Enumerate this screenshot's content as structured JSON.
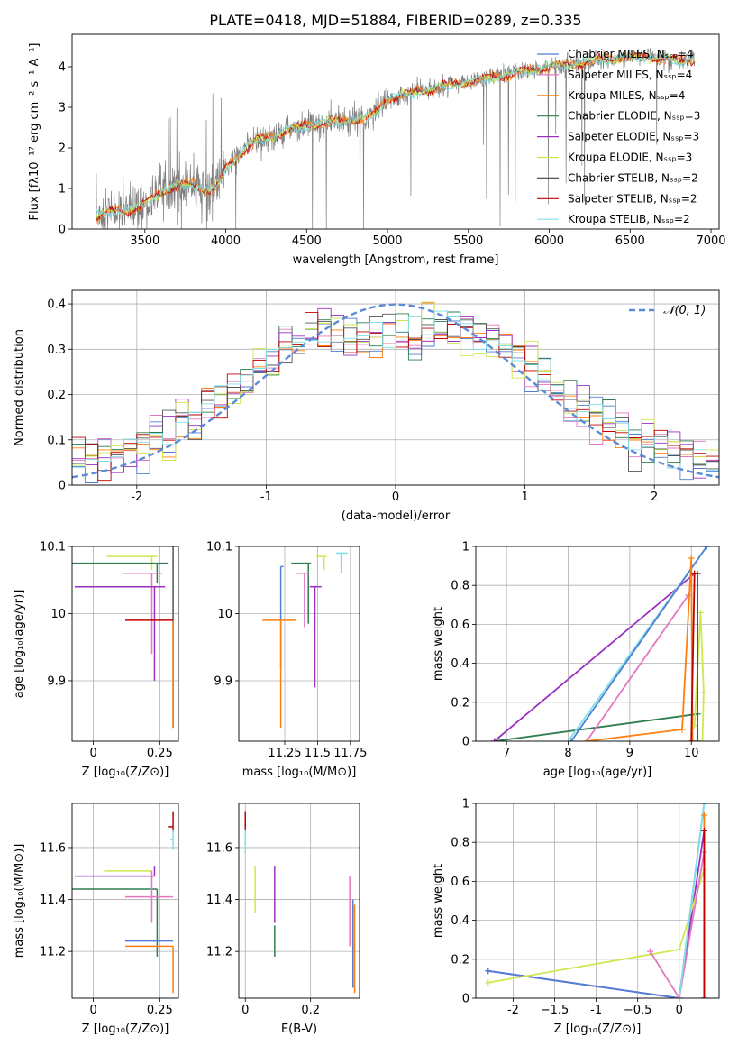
{
  "figure_title": "PLATE=0418, MJD=51884, FIBERID=0289, z=0.335",
  "colors": {
    "chabrier_miles": "#4f7fd6",
    "salpeter_miles": "#e377c2",
    "kroupa_miles": "#ff7f0e",
    "chabrier_elodie": "#2e7d4f",
    "salpeter_elodie": "#9b30c0",
    "kroupa_elodie": "#cde84f",
    "chabrier_stelib": "#555555",
    "salpeter_stelib": "#c00000",
    "kroupa_stelib": "#7fdfe6",
    "gauss": "#5b8ad8",
    "grid": "#b0b0b0"
  },
  "chart_data": [
    {
      "id": "spectrum",
      "type": "line",
      "xlabel": "wavelength [Angstrom, rest frame]",
      "ylabel": "Flux [fλ10⁻¹⁷ erg cm⁻² s⁻¹ A⁻¹]",
      "xlim": [
        3050,
        7050
      ],
      "ylim": [
        0,
        4.8
      ],
      "xticks": [
        3500,
        4000,
        4500,
        5000,
        5500,
        6000,
        6500,
        7000
      ],
      "yticks": [
        0,
        1,
        2,
        3,
        4
      ],
      "grid": false,
      "legend_position": "upper-right",
      "legend": [
        "Chabrier MILES, Nₛₛₚ=4",
        "Salpeter MILES, Nₛₛₚ=4",
        "Kroupa MILES, Nₛₛₚ=4",
        "Chabrier ELODIE, Nₛₛₚ=3",
        "Salpeter ELODIE, Nₛₛₚ=3",
        "Kroupa ELODIE, Nₛₛₚ=3",
        "Chabrier STELIB, Nₛₛₚ=2",
        "Salpeter STELIB, Nₛₛₚ=2",
        "Kroupa STELIB, Nₛₛₚ=2"
      ],
      "continuum": {
        "x": [
          3200,
          3300,
          3450,
          3500,
          3600,
          3700,
          3800,
          3900,
          3960,
          4000,
          4100,
          4200,
          4300,
          4400,
          4500,
          4600,
          4700,
          4800,
          4900,
          5000,
          5200,
          5400,
          5600,
          5800,
          6000,
          6200,
          6400,
          6600,
          6800,
          6900
        ],
        "y": [
          0.3,
          0.45,
          0.5,
          0.6,
          0.95,
          1.05,
          1.1,
          0.9,
          1.1,
          1.5,
          1.9,
          2.2,
          2.3,
          2.45,
          2.55,
          2.6,
          2.65,
          2.7,
          2.75,
          3.2,
          3.4,
          3.55,
          3.7,
          3.85,
          4.0,
          4.1,
          4.2,
          4.25,
          4.15,
          4.2
        ]
      }
    },
    {
      "id": "residual_hist",
      "type": "histogram",
      "xlabel": "(data-model)/error",
      "ylabel": "Normed distribution",
      "xlim": [
        -2.5,
        2.5
      ],
      "ylim": [
        0,
        0.43
      ],
      "xticks": [
        -2,
        -1,
        0,
        1,
        2
      ],
      "yticks": [
        0.0,
        0.1,
        0.2,
        0.3,
        0.4
      ],
      "grid": true,
      "legend": [
        "𝒩(0, 1)"
      ],
      "legend_position": "upper-right",
      "bin_width": 0.1
    },
    {
      "id": "age_vs_Z",
      "type": "errorbar",
      "xlabel": "Z [log₁₀(Z/Z⊙)]",
      "ylabel": "age  [log₁₀(age/yr)]",
      "xlim": [
        -0.08,
        0.32
      ],
      "ylim": [
        9.81,
        10.1
      ],
      "xticks": [
        0.0,
        0.25
      ],
      "yticks": [
        9.9,
        10.0,
        10.1
      ],
      "grid": true,
      "points": [
        {
          "c": "kroupa_elodie",
          "x": 0.22,
          "xe": [
            0.17,
            0.02
          ],
          "y": 10.085,
          "ye": [
            0.02,
            0.0
          ]
        },
        {
          "c": "kroupa_stelib",
          "x": 0.3,
          "xe": [
            0.0,
            0.0
          ],
          "y": 10.09,
          "ye": [
            0.0,
            0.0
          ]
        },
        {
          "c": "chabrier_elodie",
          "x": 0.24,
          "xe": [
            0.32,
            0.04
          ],
          "y": 10.075,
          "ye": [
            0.03,
            0.0
          ]
        },
        {
          "c": "salpeter_miles",
          "x": 0.22,
          "xe": [
            0.11,
            0.04
          ],
          "y": 10.06,
          "ye": [
            0.12,
            0.0
          ]
        },
        {
          "c": "salpeter_elodie",
          "x": 0.23,
          "xe": [
            0.3,
            0.04
          ],
          "y": 10.04,
          "ye": [
            0.14,
            0.0
          ]
        },
        {
          "c": "chabrier_stelib",
          "x": 0.3,
          "xe": [
            0.0,
            0.0
          ],
          "y": 10.1,
          "ye": [
            0.27,
            0.0
          ]
        },
        {
          "c": "kroupa_miles",
          "x": 0.3,
          "xe": [
            0.0,
            0.0
          ],
          "y": 9.99,
          "ye": [
            0.16,
            0.0
          ]
        },
        {
          "c": "salpeter_stelib",
          "x": 0.22,
          "xe": [
            0.1,
            0.08
          ],
          "y": 9.99,
          "ye": [
            0.0,
            0.0
          ]
        }
      ]
    },
    {
      "id": "age_vs_mass",
      "type": "errorbar",
      "xlabel": "mass [log₁₀(M/M⊙)]",
      "ylabel": "",
      "xlim": [
        10.9,
        11.82
      ],
      "ylim": [
        9.81,
        10.1
      ],
      "xticks": [
        11.25,
        11.5,
        11.75
      ],
      "yticks": [
        9.9,
        10.0,
        10.1
      ],
      "grid": true,
      "points": [
        {
          "c": "kroupa_elodie",
          "x": 11.55,
          "xe": [
            0.06,
            0.02
          ],
          "y": 10.085,
          "ye": [
            0.02,
            0.0
          ]
        },
        {
          "c": "kroupa_stelib",
          "x": 11.68,
          "xe": [
            0.04,
            0.05
          ],
          "y": 10.09,
          "ye": [
            0.03,
            0.0
          ]
        },
        {
          "c": "salpeter_stelib",
          "x": 11.73,
          "xe": [
            0.0,
            0.0
          ],
          "y": 10.09,
          "ye": [
            0.0,
            0.0
          ]
        },
        {
          "c": "chabrier_elodie",
          "x": 11.43,
          "xe": [
            0.13,
            0.02
          ],
          "y": 10.075,
          "ye": [
            0.09,
            0.0
          ]
        },
        {
          "c": "salpeter_miles",
          "x": 11.4,
          "xe": [
            0.06,
            0.04
          ],
          "y": 10.06,
          "ye": [
            0.08,
            0.0
          ]
        },
        {
          "c": "salpeter_elodie",
          "x": 11.48,
          "xe": [
            0.04,
            0.05
          ],
          "y": 10.04,
          "ye": [
            0.15,
            0.0
          ]
        },
        {
          "c": "chabrier_miles",
          "x": 11.22,
          "xe": [
            0.0,
            0.02
          ],
          "y": 10.07,
          "ye": [
            0.15,
            0.0
          ]
        },
        {
          "c": "kroupa_miles",
          "x": 11.22,
          "xe": [
            0.14,
            0.12
          ],
          "y": 9.99,
          "ye": [
            0.16,
            0.0
          ]
        }
      ]
    },
    {
      "id": "mass_weight_vs_age",
      "type": "line",
      "xlabel": "age  [log₁₀(age/yr)]",
      "ylabel": "mass weight",
      "xlim": [
        6.5,
        10.45
      ],
      "ylim": [
        0,
        1.0
      ],
      "xticks": [
        7,
        8,
        9,
        10
      ],
      "yticks": [
        0.0,
        0.2,
        0.4,
        0.6,
        0.8,
        1.0
      ],
      "grid": true,
      "series": [
        {
          "c": "chabrier_elodie",
          "x": [
            6.8,
            10.1
          ],
          "y": [
            0.0,
            0.14
          ]
        },
        {
          "c": "salpeter_elodie",
          "x": [
            6.8,
            10.05
          ],
          "y": [
            0.0,
            0.86
          ]
        },
        {
          "c": "kroupa_stelib",
          "x": [
            8.0,
            10.25
          ],
          "y": [
            0.0,
            1.0
          ]
        },
        {
          "c": "chabrier_miles",
          "x": [
            8.05,
            10.25
          ],
          "y": [
            0.0,
            1.0
          ]
        },
        {
          "c": "salpeter_miles",
          "x": [
            8.3,
            9.95
          ],
          "y": [
            0.0,
            0.75
          ]
        },
        {
          "c": "kroupa_miles",
          "x": [
            8.3,
            9.85,
            10.0,
            10.02
          ],
          "y": [
            0.0,
            0.06,
            0.94,
            0.0
          ]
        },
        {
          "c": "kroupa_elodie",
          "x": [
            10.05,
            10.15,
            10.2,
            10.18
          ],
          "y": [
            0.08,
            0.66,
            0.25,
            0.0
          ]
        },
        {
          "c": "chabrier_stelib",
          "x": [
            10.1,
            10.1
          ],
          "y": [
            0.0,
            0.86
          ]
        },
        {
          "c": "salpeter_stelib",
          "x": [
            10.0,
            10.05
          ],
          "y": [
            0.0,
            0.86
          ]
        }
      ]
    },
    {
      "id": "mass_vs_Z",
      "type": "errorbar",
      "xlabel": "Z [log₁₀(Z/Z⊙)]",
      "ylabel": "mass [log₁₀(M/M⊙)]",
      "xlim": [
        -0.08,
        0.32
      ],
      "ylim": [
        11.02,
        11.77
      ],
      "xticks": [
        0.0,
        0.25
      ],
      "yticks": [
        11.2,
        11.4,
        11.6
      ],
      "grid": true,
      "points": [
        {
          "c": "salpeter_stelib",
          "x": 0.3,
          "xe": [
            0.02,
            0.0
          ],
          "y": 11.68,
          "ye": [
            0.02,
            0.06
          ]
        },
        {
          "c": "kroupa_stelib",
          "x": 0.3,
          "xe": [
            0.01,
            0.0
          ],
          "y": 11.63,
          "ye": [
            0.04,
            0.04
          ]
        },
        {
          "c": "kroupa_elodie",
          "x": 0.22,
          "xe": [
            0.18,
            0.0
          ],
          "y": 11.51,
          "ye": [
            0.0,
            0.0
          ]
        },
        {
          "c": "salpeter_elodie",
          "x": 0.23,
          "xe": [
            0.3,
            0.0
          ],
          "y": 11.49,
          "ye": [
            0.0,
            0.04
          ]
        },
        {
          "c": "chabrier_elodie",
          "x": 0.24,
          "xe": [
            0.32,
            0.0
          ],
          "y": 11.44,
          "ye": [
            0.26,
            0.0
          ]
        },
        {
          "c": "salpeter_miles",
          "x": 0.22,
          "xe": [
            0.1,
            0.08
          ],
          "y": 11.41,
          "ye": [
            0.1,
            0.1
          ]
        },
        {
          "c": "chabrier_miles",
          "x": 0.3,
          "xe": [
            0.18,
            0.0
          ],
          "y": 11.24,
          "ye": [
            0.0,
            0.0
          ]
        },
        {
          "c": "kroupa_miles",
          "x": 0.3,
          "xe": [
            0.18,
            0.0
          ],
          "y": 11.22,
          "ye": [
            0.18,
            0.0
          ]
        }
      ]
    },
    {
      "id": "mass_vs_ebv",
      "type": "errorbar",
      "xlabel": "E(B-V)",
      "ylabel": "",
      "xlim": [
        -0.02,
        0.35
      ],
      "ylim": [
        11.02,
        11.77
      ],
      "xticks": [
        0.0,
        0.2
      ],
      "yticks": [
        11.2,
        11.4,
        11.6
      ],
      "grid": true,
      "points": [
        {
          "c": "salpeter_stelib",
          "x": 0.0,
          "xe": [
            0.0,
            0.0
          ],
          "y": 11.68,
          "ye": [
            0.02,
            0.06
          ]
        },
        {
          "c": "kroupa_stelib",
          "x": 0.0,
          "xe": [
            0.0,
            0.0
          ],
          "y": 11.63,
          "ye": [
            0.05,
            0.04
          ]
        },
        {
          "c": "kroupa_elodie",
          "x": 0.03,
          "xe": [
            0.0,
            0.0
          ],
          "y": 11.45,
          "ye": [
            0.1,
            0.08
          ]
        },
        {
          "c": "salpeter_elodie",
          "x": 0.09,
          "xe": [
            0.0,
            0.0
          ],
          "y": 11.42,
          "ye": [
            0.11,
            0.11
          ]
        },
        {
          "c": "chabrier_elodie",
          "x": 0.09,
          "xe": [
            0.0,
            0.0
          ],
          "y": 11.3,
          "ye": [
            0.12,
            0.0
          ]
        },
        {
          "c": "salpeter_miles",
          "x": 0.32,
          "xe": [
            0.0,
            0.0
          ],
          "y": 11.4,
          "ye": [
            0.18,
            0.09
          ]
        },
        {
          "c": "chabrier_miles",
          "x": 0.33,
          "xe": [
            0.0,
            0.0
          ],
          "y": 11.24,
          "ye": [
            0.18,
            0.16
          ]
        },
        {
          "c": "kroupa_miles",
          "x": 0.335,
          "xe": [
            0.0,
            0.0
          ],
          "y": 11.22,
          "ye": [
            0.18,
            0.16
          ]
        }
      ]
    },
    {
      "id": "mass_weight_vs_Z",
      "type": "line",
      "xlabel": "Z [log₁₀(Z/Z⊙)]",
      "ylabel": "mass weight",
      "xlim": [
        -2.45,
        0.48
      ],
      "ylim": [
        0,
        1.0
      ],
      "xticks": [
        -2.0,
        -1.5,
        -1.0,
        -0.5,
        0.0
      ],
      "yticks": [
        0.0,
        0.2,
        0.4,
        0.6,
        0.8,
        1.0
      ],
      "grid": true,
      "series": [
        {
          "c": "salpeter_elodie",
          "x": [
            -2.3,
            0.0,
            0.3,
            0.3
          ],
          "y": [
            0.14,
            0.0,
            0.86,
            0.0
          ]
        },
        {
          "c": "chabrier_miles",
          "x": [
            -2.3,
            0.0,
            0.3
          ],
          "y": [
            0.14,
            0.0,
            1.0
          ]
        },
        {
          "c": "kroupa_elodie",
          "x": [
            -2.3,
            0.0,
            0.3
          ],
          "y": [
            0.08,
            0.25,
            0.66
          ]
        },
        {
          "c": "salpeter_miles",
          "x": [
            -0.35,
            0.0,
            0.3
          ],
          "y": [
            0.24,
            0.0,
            0.75
          ]
        },
        {
          "c": "kroupa_stelib",
          "x": [
            0.0,
            0.3
          ],
          "y": [
            0.0,
            1.0
          ]
        },
        {
          "c": "kroupa_miles",
          "x": [
            0.3,
            0.3
          ],
          "y": [
            0.0,
            0.94
          ]
        },
        {
          "c": "salpeter_stelib",
          "x": [
            0.3,
            0.3
          ],
          "y": [
            0.0,
            0.86
          ]
        }
      ]
    }
  ]
}
